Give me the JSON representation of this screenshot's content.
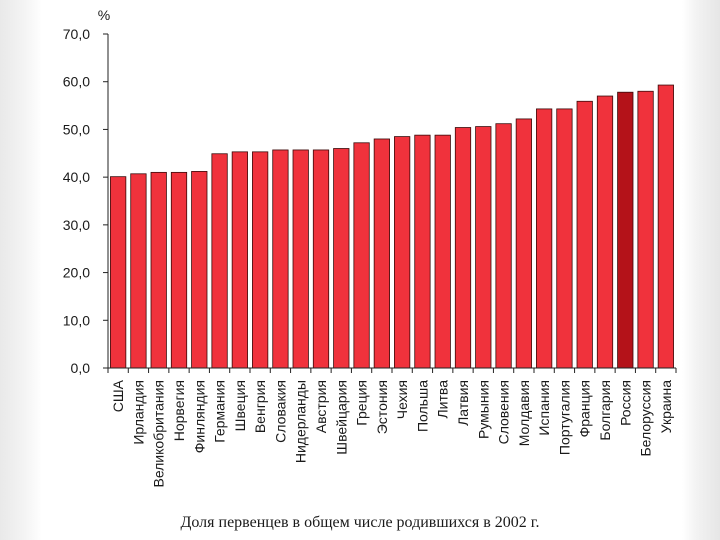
{
  "colors": {
    "bar": "#f0323c",
    "bar_highlight": "#b41219",
    "bar_stroke": "#3a0a0a",
    "axis": "#222222",
    "text": "#1a1a1a"
  },
  "chart_data": {
    "type": "bar",
    "title": "Доля первенцев в общем числе родившихся в 2002 г.",
    "ylabel": "%",
    "xlabel": "",
    "ylim": [
      0,
      70
    ],
    "ytick_values": [
      0,
      10,
      20,
      30,
      40,
      50,
      60,
      70
    ],
    "ytick_labels": [
      "0,0",
      "10,0",
      "20,0",
      "30,0",
      "40,0",
      "50,0",
      "60,0",
      "70,0"
    ],
    "highlight_category": "Россия",
    "categories": [
      "США",
      "Ирландия",
      "Великобритания",
      "Норвегия",
      "Финляндия",
      "Германия",
      "Швеция",
      "Венгрия",
      "Словакия",
      "Нидерланды",
      "Австрия",
      "Швейцария",
      "Греция",
      "Эстония",
      "Чехия",
      "Польша",
      "Литва",
      "Латвия",
      "Румыния",
      "Словения",
      "Молдавия",
      "Испания",
      "Португалия",
      "Франция",
      "Болгария",
      "Россия",
      "Белоруссия",
      "Украина"
    ],
    "values": [
      40.1,
      40.7,
      41.0,
      41.0,
      41.2,
      44.9,
      45.3,
      45.3,
      45.7,
      45.7,
      45.7,
      46.0,
      47.2,
      48.0,
      48.5,
      48.8,
      48.8,
      50.4,
      50.6,
      51.2,
      52.2,
      54.3,
      54.3,
      55.9,
      57.0,
      57.8,
      58.0,
      59.3
    ]
  }
}
